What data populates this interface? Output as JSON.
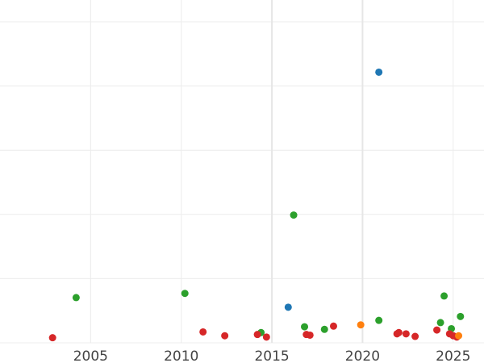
{
  "chart_data": {
    "type": "scatter",
    "title": "",
    "xlabel": "",
    "ylabel": "",
    "xlim": [
      2000.0,
      2026.7
    ],
    "ylim": [
      0,
      100
    ],
    "x_ticks": [
      2005,
      2010,
      2015,
      2020,
      2025
    ],
    "x_tick_labels": [
      "2005",
      "2010",
      "2015",
      "2020",
      "2025"
    ],
    "y_gridlines": [
      0,
      20,
      40,
      60,
      80,
      100
    ],
    "grid": true,
    "legend": "none",
    "series": [
      {
        "color": "#1f77b4",
        "points": [
          {
            "x": 2020.9,
            "y": 84.3
          },
          {
            "x": 2015.9,
            "y": 11.1
          }
        ]
      },
      {
        "color": "#2ca02c",
        "points": [
          {
            "x": 2004.2,
            "y": 14.1
          },
          {
            "x": 2010.2,
            "y": 15.4
          },
          {
            "x": 2014.4,
            "y": 3.2
          },
          {
            "x": 2016.2,
            "y": 39.8
          },
          {
            "x": 2016.8,
            "y": 5.0
          },
          {
            "x": 2017.9,
            "y": 4.2
          },
          {
            "x": 2020.9,
            "y": 7.0
          },
          {
            "x": 2024.3,
            "y": 6.3
          },
          {
            "x": 2024.5,
            "y": 14.6
          },
          {
            "x": 2024.9,
            "y": 4.4
          },
          {
            "x": 2025.4,
            "y": 8.2
          }
        ]
      },
      {
        "color": "#d62728",
        "points": [
          {
            "x": 2002.9,
            "y": 1.6
          },
          {
            "x": 2011.2,
            "y": 3.4
          },
          {
            "x": 2012.4,
            "y": 2.2
          },
          {
            "x": 2014.2,
            "y": 2.6
          },
          {
            "x": 2014.7,
            "y": 1.8
          },
          {
            "x": 2016.9,
            "y": 2.6
          },
          {
            "x": 2017.1,
            "y": 2.4
          },
          {
            "x": 2018.4,
            "y": 5.2
          },
          {
            "x": 2021.9,
            "y": 2.8
          },
          {
            "x": 2022.0,
            "y": 3.2
          },
          {
            "x": 2022.4,
            "y": 2.8
          },
          {
            "x": 2022.9,
            "y": 2.0
          },
          {
            "x": 2024.1,
            "y": 4.0
          },
          {
            "x": 2024.8,
            "y": 2.8
          },
          {
            "x": 2025.0,
            "y": 2.2
          },
          {
            "x": 2025.2,
            "y": 1.8
          }
        ]
      },
      {
        "color": "#ff7f0e",
        "points": [
          {
            "x": 2019.9,
            "y": 5.6
          },
          {
            "x": 2025.3,
            "y": 2.2
          }
        ]
      }
    ]
  }
}
